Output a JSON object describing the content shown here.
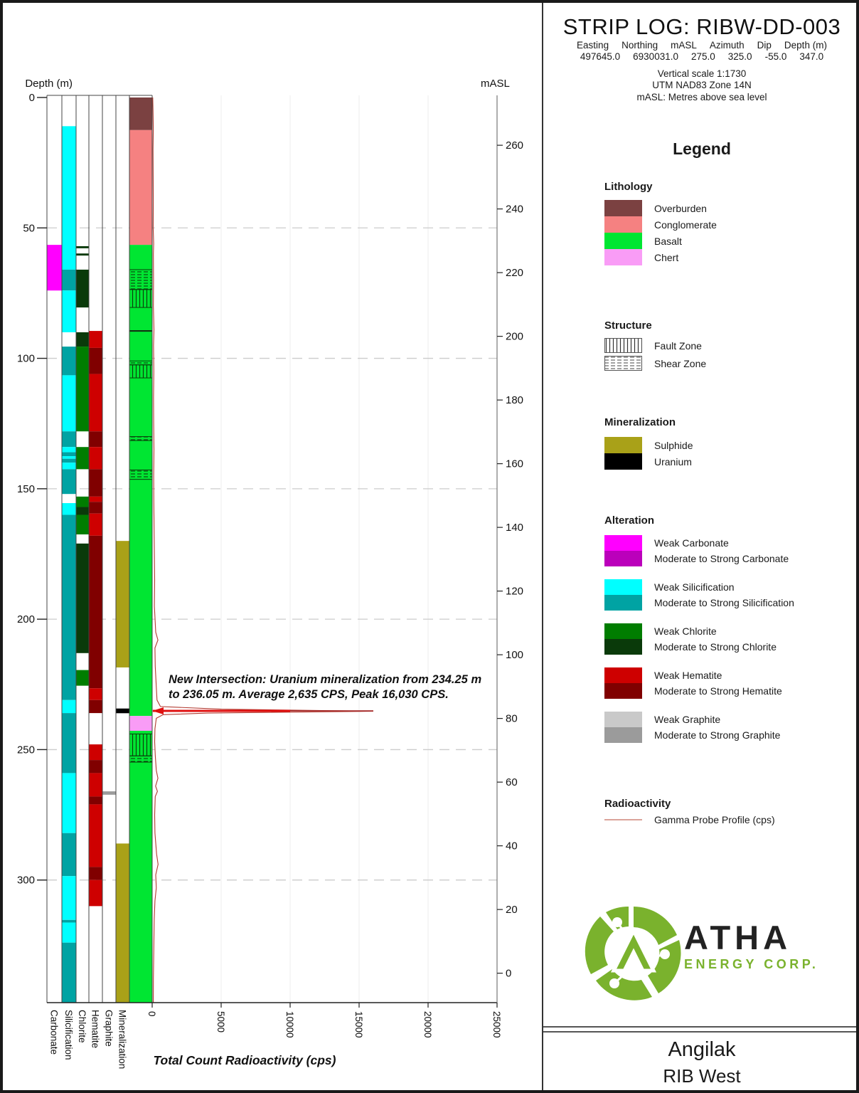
{
  "header": {
    "title": "STRIP LOG: RIBW-DD-003",
    "meta": [
      {
        "label": "Easting",
        "value": "497645.0"
      },
      {
        "label": "Northing",
        "value": "6930031.0"
      },
      {
        "label": "mASL",
        "value": "275.0"
      },
      {
        "label": "Azimuth",
        "value": "325.0"
      },
      {
        "label": "Dip",
        "value": "-55.0"
      },
      {
        "label": "Depth (m)",
        "value": "347.0"
      }
    ],
    "scale_lines": [
      "Vertical scale 1:1730",
      "UTM NAD83 Zone 14N",
      "mASL: Metres above sea level"
    ]
  },
  "legend": {
    "heading": "Legend",
    "lithology": {
      "heading": "Lithology",
      "items": [
        {
          "label": "Overburden",
          "color_key": "overburden"
        },
        {
          "label": "Conglomerate",
          "color_key": "conglomerate"
        },
        {
          "label": "Basalt",
          "color_key": "basalt"
        },
        {
          "label": "Chert",
          "color_key": "chert"
        }
      ]
    },
    "structure": {
      "heading": "Structure",
      "items": [
        {
          "label": "Fault Zone",
          "pattern": "fault"
        },
        {
          "label": "Shear Zone",
          "pattern": "shear"
        }
      ]
    },
    "mineralization": {
      "heading": "Mineralization",
      "items": [
        {
          "label": "Sulphide",
          "color_key": "sulphide"
        },
        {
          "label": "Uranium",
          "color_key": "uranium"
        }
      ]
    },
    "alteration": {
      "heading": "Alteration",
      "pairs": [
        {
          "weak_label": "Weak Carbonate",
          "strong_label": "Moderate to Strong Carbonate",
          "weak_key": "carbonate_weak",
          "strong_key": "carbonate_strong"
        },
        {
          "weak_label": "Weak Silicification",
          "strong_label": "Moderate to Strong Silicification",
          "weak_key": "silicification_weak",
          "strong_key": "silicification_strong"
        },
        {
          "weak_label": "Weak Chlorite",
          "strong_label": "Moderate to Strong Chlorite",
          "weak_key": "chlorite_weak",
          "strong_key": "chlorite_strong"
        },
        {
          "weak_label": "Weak Hematite",
          "strong_label": "Moderate to Strong Hematite",
          "weak_key": "hematite_weak",
          "strong_key": "hematite_strong"
        },
        {
          "weak_label": "Weak Graphite",
          "strong_label": "Moderate to Strong Graphite",
          "weak_key": "graphite_weak",
          "strong_key": "graphite_strong"
        }
      ]
    },
    "radioactivity": {
      "heading": "Radioactivity",
      "line_label": "Gamma Probe Profile (cps)"
    }
  },
  "logo": {
    "name": "ATHA",
    "sub": "ENERGY CORP."
  },
  "footer": {
    "project": "Angilak",
    "area": "RIB West"
  },
  "annotation_text": "New Intersection: Uranium mineralization from 234.25 m to 236.05 m. Average 2,635 CPS, Peak 16,030 CPS.",
  "colors": {
    "overburden": "#7b4141",
    "conglomerate": "#f58181",
    "basalt": "#00e632",
    "chert": "#f99cf6",
    "sulphide": "#a9a118",
    "uranium": "#000000",
    "carbonate_weak": "#ff00ff",
    "carbonate_strong": "#bb00bb",
    "silicification_weak": "#00ffff",
    "silicification_strong": "#00a3a3",
    "chlorite_weak": "#007d00",
    "chlorite_strong": "#0a3a0a",
    "hematite_weak": "#ce0000",
    "hematite_strong": "#800000",
    "graphite_weak": "#c9c9c9",
    "graphite_strong": "#9b9b9b",
    "gamma_line": "#b23a30",
    "gamma_spike": "#e01010",
    "legend_gamma_line": "#dba39a",
    "gridline": "#cccccc",
    "axis": "#555555"
  },
  "chart_data": {
    "type": "strip-log",
    "depth_axis": {
      "label": "Depth (m)",
      "min": 0,
      "max": 347,
      "ticks": [
        0,
        50,
        100,
        150,
        200,
        250,
        300
      ]
    },
    "masl_axis": {
      "label": "mASL",
      "collar_masl": 275.0,
      "dip_deg": -55.0,
      "ticks": [
        260,
        240,
        220,
        200,
        180,
        160,
        140,
        120,
        100,
        80,
        60,
        40,
        20,
        0
      ]
    },
    "gamma_axis": {
      "label": "Total Count Radioactivity (cps)",
      "min": 0,
      "max": 25000,
      "ticks": [
        0,
        5000,
        10000,
        15000,
        20000,
        25000
      ]
    },
    "track_labels": [
      "Carbonate",
      "Silicification",
      "Chlorite",
      "Hematite",
      "Graphite",
      "Mineralization"
    ],
    "alteration_tracks": [
      {
        "name": "Carbonate",
        "intervals": [
          {
            "from": 56.5,
            "to": 74,
            "level": "weak"
          }
        ]
      },
      {
        "name": "Silicification",
        "intervals": [
          {
            "from": 11,
            "to": 66,
            "level": "weak"
          },
          {
            "from": 66,
            "to": 74,
            "level": "strong"
          },
          {
            "from": 74,
            "to": 90,
            "level": "weak"
          },
          {
            "from": 95.5,
            "to": 106.5,
            "level": "strong"
          },
          {
            "from": 106.5,
            "to": 128,
            "level": "weak"
          },
          {
            "from": 128,
            "to": 134,
            "level": "strong"
          },
          {
            "from": 134,
            "to": 136,
            "level": "weak"
          },
          {
            "from": 136,
            "to": 137.5,
            "level": "strong"
          },
          {
            "from": 137.5,
            "to": 138.5,
            "level": "weak"
          },
          {
            "from": 138.5,
            "to": 140,
            "level": "strong"
          },
          {
            "from": 140,
            "to": 142.5,
            "level": "weak"
          },
          {
            "from": 142.5,
            "to": 152,
            "level": "strong"
          },
          {
            "from": 155.5,
            "to": 160,
            "level": "weak"
          },
          {
            "from": 160,
            "to": 231,
            "level": "strong"
          },
          {
            "from": 231,
            "to": 236,
            "level": "weak"
          },
          {
            "from": 236,
            "to": 259,
            "level": "strong"
          },
          {
            "from": 259,
            "to": 282,
            "level": "weak"
          },
          {
            "from": 282,
            "to": 298.5,
            "level": "strong"
          },
          {
            "from": 298.5,
            "to": 315.3,
            "level": "weak"
          },
          {
            "from": 315.3,
            "to": 316.3,
            "level": "strong"
          },
          {
            "from": 316.3,
            "to": 324,
            "level": "weak"
          },
          {
            "from": 324,
            "to": 347,
            "level": "strong"
          }
        ]
      },
      {
        "name": "Chlorite",
        "intervals": [
          {
            "from": 57,
            "to": 57.8,
            "level": "strong"
          },
          {
            "from": 59.8,
            "to": 60.6,
            "level": "strong"
          },
          {
            "from": 66,
            "to": 80.5,
            "level": "strong"
          },
          {
            "from": 90,
            "to": 95.5,
            "level": "strong"
          },
          {
            "from": 95.5,
            "to": 128,
            "level": "weak"
          },
          {
            "from": 134,
            "to": 142.5,
            "level": "weak"
          },
          {
            "from": 153,
            "to": 157,
            "level": "weak"
          },
          {
            "from": 157,
            "to": 160,
            "level": "strong"
          },
          {
            "from": 160,
            "to": 167.5,
            "level": "weak"
          },
          {
            "from": 171,
            "to": 213,
            "level": "strong"
          },
          {
            "from": 219.5,
            "to": 225.5,
            "level": "weak"
          }
        ]
      },
      {
        "name": "Hematite",
        "intervals": [
          {
            "from": 89.5,
            "to": 96,
            "level": "weak"
          },
          {
            "from": 96,
            "to": 106,
            "level": "strong"
          },
          {
            "from": 106,
            "to": 128,
            "level": "weak"
          },
          {
            "from": 128,
            "to": 134,
            "level": "strong"
          },
          {
            "from": 134,
            "to": 142.5,
            "level": "weak"
          },
          {
            "from": 142.5,
            "to": 153,
            "level": "strong"
          },
          {
            "from": 153,
            "to": 155,
            "level": "weak"
          },
          {
            "from": 155,
            "to": 159.5,
            "level": "strong"
          },
          {
            "from": 159.5,
            "to": 168,
            "level": "weak"
          },
          {
            "from": 168,
            "to": 226.5,
            "level": "strong"
          },
          {
            "from": 226.5,
            "to": 231,
            "level": "weak"
          },
          {
            "from": 231,
            "to": 236,
            "level": "strong"
          },
          {
            "from": 248,
            "to": 254,
            "level": "weak"
          },
          {
            "from": 254,
            "to": 259,
            "level": "strong"
          },
          {
            "from": 259,
            "to": 268,
            "level": "weak"
          },
          {
            "from": 268,
            "to": 271,
            "level": "strong"
          },
          {
            "from": 271,
            "to": 295,
            "level": "weak"
          },
          {
            "from": 295,
            "to": 300,
            "level": "strong"
          },
          {
            "from": 300,
            "to": 310,
            "level": "weak"
          }
        ]
      },
      {
        "name": "Graphite",
        "intervals": [
          {
            "from": 266,
            "to": 267.3,
            "level": "strong"
          }
        ]
      }
    ],
    "mineralization_track": [
      {
        "from": 170,
        "to": 218.5,
        "type": "sulphide"
      },
      {
        "from": 234.25,
        "to": 236.05,
        "type": "uranium"
      },
      {
        "from": 286,
        "to": 347,
        "type": "sulphide"
      }
    ],
    "lithology": {
      "units": [
        {
          "from": 0,
          "to": 12.5,
          "type": "overburden"
        },
        {
          "from": 12.5,
          "to": 56.5,
          "type": "conglomerate"
        },
        {
          "from": 56.5,
          "to": 237.1,
          "type": "basalt"
        },
        {
          "from": 237.1,
          "to": 242.8,
          "type": "chert"
        },
        {
          "from": 242.8,
          "to": 347,
          "type": "basalt"
        }
      ],
      "structures": [
        {
          "from": 66,
          "to": 73.6,
          "type": "shear"
        },
        {
          "from": 73.6,
          "to": 80.5,
          "type": "fault"
        },
        {
          "from": 101,
          "to": 102.5,
          "type": "shear"
        },
        {
          "from": 102.5,
          "to": 107.5,
          "type": "fault"
        },
        {
          "from": 130,
          "to": 131.5,
          "type": "shear"
        },
        {
          "from": 142.8,
          "to": 146.4,
          "type": "shear"
        },
        {
          "from": 244,
          "to": 252.4,
          "type": "fault"
        },
        {
          "from": 252.4,
          "to": 254.8,
          "type": "shear"
        }
      ],
      "contacts": [
        89.5
      ]
    },
    "mineralized_intersection": {
      "from_m": 234.25,
      "to_m": 236.05,
      "avg_cps": 2635,
      "peak_cps": 16030
    },
    "gamma_profile": [
      [
        0,
        40
      ],
      [
        5,
        60
      ],
      [
        12,
        80
      ],
      [
        20,
        60
      ],
      [
        30,
        70
      ],
      [
        40,
        80
      ],
      [
        50,
        70
      ],
      [
        56,
        110
      ],
      [
        60,
        90
      ],
      [
        70,
        100
      ],
      [
        80,
        90
      ],
      [
        89,
        130
      ],
      [
        95,
        100
      ],
      [
        105,
        120
      ],
      [
        115,
        100
      ],
      [
        125,
        110
      ],
      [
        135,
        130
      ],
      [
        145,
        110
      ],
      [
        155,
        120
      ],
      [
        165,
        140
      ],
      [
        175,
        160
      ],
      [
        185,
        180
      ],
      [
        195,
        160
      ],
      [
        205,
        260
      ],
      [
        208,
        420
      ],
      [
        211,
        200
      ],
      [
        218,
        220
      ],
      [
        226,
        300
      ],
      [
        231,
        350
      ],
      [
        233.5,
        600
      ],
      [
        234.5,
        5000
      ],
      [
        235.3,
        16030
      ],
      [
        236,
        4000
      ],
      [
        236.6,
        800
      ],
      [
        238,
        300
      ],
      [
        242,
        200
      ],
      [
        247,
        180
      ],
      [
        252,
        220
      ],
      [
        258,
        300
      ],
      [
        261,
        420
      ],
      [
        264,
        250
      ],
      [
        266,
        380
      ],
      [
        268,
        220
      ],
      [
        275,
        180
      ],
      [
        282,
        200
      ],
      [
        290,
        320
      ],
      [
        294,
        430
      ],
      [
        298,
        260
      ],
      [
        303,
        300
      ],
      [
        308,
        200
      ],
      [
        315,
        150
      ],
      [
        322,
        130
      ],
      [
        330,
        110
      ],
      [
        338,
        90
      ],
      [
        347,
        80
      ]
    ]
  }
}
